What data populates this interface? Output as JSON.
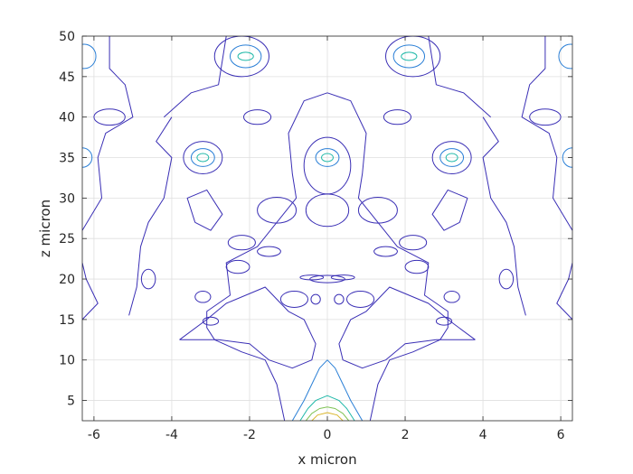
{
  "chart_data": {
    "type": "contour",
    "title": "",
    "xlabel": "x micron",
    "ylabel": "z micron",
    "xlim": [
      -6.3,
      6.3
    ],
    "ylim": [
      2.5,
      50
    ],
    "xticks": [
      -6,
      -4,
      -2,
      0,
      2,
      4,
      6
    ],
    "xtick_labels": [
      "-6",
      "-4",
      "-2",
      "0",
      "2",
      "4",
      "6"
    ],
    "yticks": [
      5,
      10,
      15,
      20,
      25,
      30,
      35,
      40,
      45,
      50
    ],
    "ytick_labels": [
      "5",
      "10",
      "15",
      "20",
      "25",
      "30",
      "35",
      "40",
      "45",
      "50"
    ],
    "grid": true,
    "symmetry": "mirror about x = 0",
    "level_colors": [
      "#3a2fb5",
      "#2a7fd6",
      "#1fb8a8",
      "#7ec253",
      "#d9b529"
    ],
    "contours": [
      {
        "level": 1,
        "type": "line",
        "points": [
          [
            -4.2,
            40
          ],
          [
            -3.5,
            43
          ],
          [
            -2.8,
            44
          ],
          [
            -2.6,
            50
          ]
        ]
      },
      {
        "level": 1,
        "type": "line",
        "points": [
          [
            -1.1,
            2.5
          ],
          [
            -1.3,
            7
          ],
          [
            -1.6,
            10
          ],
          [
            -2.2,
            11
          ],
          [
            -2.9,
            12.5
          ],
          [
            -3.1,
            14
          ],
          [
            -3.1,
            16
          ],
          [
            -2.5,
            18
          ],
          [
            -2.6,
            22
          ],
          [
            -1.8,
            24
          ],
          [
            -1.3,
            27
          ],
          [
            -0.8,
            30
          ],
          [
            -0.9,
            33
          ],
          [
            -1.0,
            38
          ],
          [
            -0.6,
            42
          ],
          [
            0,
            43
          ]
        ]
      },
      {
        "level": 1,
        "type": "line",
        "points": [
          [
            -5.6,
            50
          ],
          [
            -5.6,
            46
          ],
          [
            -5.2,
            44
          ],
          [
            -5.0,
            40
          ],
          [
            -5.7,
            38
          ],
          [
            -5.9,
            35
          ],
          [
            -5.8,
            30
          ],
          [
            -6.3,
            26
          ]
        ]
      },
      {
        "level": 1,
        "type": "line",
        "points": [
          [
            -6.3,
            15
          ],
          [
            -5.9,
            17
          ],
          [
            -6.2,
            20
          ],
          [
            -6.3,
            22
          ]
        ]
      },
      {
        "level": 1,
        "type": "line",
        "points": [
          [
            -5.1,
            15.5
          ],
          [
            -4.9,
            19
          ],
          [
            -4.8,
            24
          ],
          [
            -4.6,
            27
          ],
          [
            -4.2,
            30
          ],
          [
            -4.0,
            35
          ],
          [
            -4.4,
            37
          ],
          [
            -4.0,
            40
          ]
        ]
      },
      {
        "level": 1,
        "type": "line",
        "points": [
          [
            -3.4,
            27
          ],
          [
            -3.6,
            30
          ],
          [
            -3.1,
            31
          ],
          [
            -2.7,
            28
          ],
          [
            -3.0,
            26
          ],
          [
            -3.4,
            27
          ]
        ]
      },
      {
        "level": 1,
        "type": "line",
        "points": [
          [
            -3.8,
            12.5
          ],
          [
            -3.1,
            15
          ],
          [
            -2.6,
            17
          ],
          [
            -1.6,
            19
          ],
          [
            -1.0,
            16
          ],
          [
            -0.6,
            15
          ],
          [
            -0.3,
            12
          ],
          [
            -0.4,
            10
          ],
          [
            -0.9,
            9
          ],
          [
            -1.5,
            10
          ],
          [
            -2.0,
            12
          ],
          [
            -2.8,
            12.5
          ],
          [
            -3.8,
            12.5
          ]
        ]
      },
      {
        "level": 1,
        "type": "ellipse",
        "cx": -4.6,
        "cy": 20,
        "rx": 0.18,
        "ry": 1.2
      },
      {
        "level": 1,
        "type": "ellipse",
        "cx": -3.2,
        "cy": 17.8,
        "rx": 0.2,
        "ry": 0.7
      },
      {
        "level": 1,
        "type": "ellipse",
        "cx": -3.0,
        "cy": 14.8,
        "rx": 0.2,
        "ry": 0.5
      },
      {
        "level": 1,
        "type": "ellipse",
        "cx": -2.3,
        "cy": 21.5,
        "rx": 0.3,
        "ry": 0.8
      },
      {
        "level": 1,
        "type": "ellipse",
        "cx": -2.2,
        "cy": 24.5,
        "rx": 0.35,
        "ry": 0.9
      },
      {
        "level": 1,
        "type": "ellipse",
        "cx": -1.5,
        "cy": 23.4,
        "rx": 0.3,
        "ry": 0.6
      },
      {
        "level": 1,
        "type": "ellipse",
        "cx": -1.3,
        "cy": 28.5,
        "rx": 0.5,
        "ry": 1.6
      },
      {
        "level": 1,
        "type": "ellipse",
        "cx": -0.85,
        "cy": 17.5,
        "rx": 0.35,
        "ry": 1.0
      },
      {
        "level": 1,
        "type": "ellipse",
        "cx": -0.4,
        "cy": 20.2,
        "rx": 0.3,
        "ry": 0.3
      },
      {
        "level": 1,
        "type": "ellipse",
        "cx": -0.3,
        "cy": 17.5,
        "rx": 0.12,
        "ry": 0.6
      },
      {
        "level": 1,
        "type": "ellipse",
        "cx": 0,
        "cy": 20,
        "rx": 0.45,
        "ry": 0.45
      },
      {
        "level": 1,
        "type": "ellipse",
        "cx": 0,
        "cy": 28.5,
        "rx": 0.55,
        "ry": 2.0
      },
      {
        "level": 1,
        "type": "ellipse",
        "cx": 0,
        "cy": 34,
        "rx": 0.6,
        "ry": 3.5
      },
      {
        "level": 1,
        "type": "ellipse",
        "cx": -1.8,
        "cy": 40,
        "rx": 0.35,
        "ry": 0.9
      },
      {
        "level": 1,
        "type": "ellipse",
        "cx": -2.2,
        "cy": 47.5,
        "rx": 0.7,
        "ry": 2.5
      },
      {
        "level": 1,
        "type": "ellipse",
        "cx": -3.2,
        "cy": 35,
        "rx": 0.5,
        "ry": 2.0
      },
      {
        "level": 1,
        "type": "ellipse",
        "cx": -5.6,
        "cy": 40,
        "rx": 0.4,
        "ry": 1.0
      },
      {
        "level": 2,
        "type": "line",
        "points": [
          [
            -0.9,
            2.5
          ],
          [
            -0.6,
            5
          ],
          [
            -0.4,
            7
          ],
          [
            -0.2,
            9
          ],
          [
            0,
            10
          ]
        ]
      },
      {
        "level": 2,
        "type": "ellipse",
        "cx": -3.2,
        "cy": 35,
        "rx": 0.3,
        "ry": 1.1
      },
      {
        "level": 2,
        "type": "ellipse",
        "cx": 0,
        "cy": 35,
        "rx": 0.3,
        "ry": 1.1
      },
      {
        "level": 2,
        "type": "ellipse",
        "cx": -2.1,
        "cy": 47.5,
        "rx": 0.4,
        "ry": 1.4
      },
      {
        "level": 2,
        "type": "ellipse",
        "cx": -6.25,
        "cy": 47.5,
        "rx": 0.3,
        "ry": 1.5
      },
      {
        "level": 2,
        "type": "ellipse",
        "cx": -6.3,
        "cy": 35,
        "rx": 0.25,
        "ry": 1.2
      },
      {
        "level": 3,
        "type": "line",
        "points": [
          [
            -0.7,
            2.5
          ],
          [
            -0.5,
            4
          ],
          [
            -0.3,
            5
          ],
          [
            0,
            5.6
          ]
        ]
      },
      {
        "level": 3,
        "type": "ellipse",
        "cx": -3.2,
        "cy": 35,
        "rx": 0.15,
        "ry": 0.5
      },
      {
        "level": 3,
        "type": "ellipse",
        "cx": 0,
        "cy": 35,
        "rx": 0.15,
        "ry": 0.5
      },
      {
        "level": 3,
        "type": "ellipse",
        "cx": -2.1,
        "cy": 47.5,
        "rx": 0.2,
        "ry": 0.5
      },
      {
        "level": 4,
        "type": "line",
        "points": [
          [
            -0.55,
            2.5
          ],
          [
            -0.4,
            3.4
          ],
          [
            -0.2,
            4.0
          ],
          [
            0,
            4.2
          ]
        ]
      },
      {
        "level": 5,
        "type": "line",
        "points": [
          [
            -0.4,
            2.5
          ],
          [
            -0.25,
            3.2
          ],
          [
            0,
            3.5
          ]
        ]
      }
    ]
  }
}
